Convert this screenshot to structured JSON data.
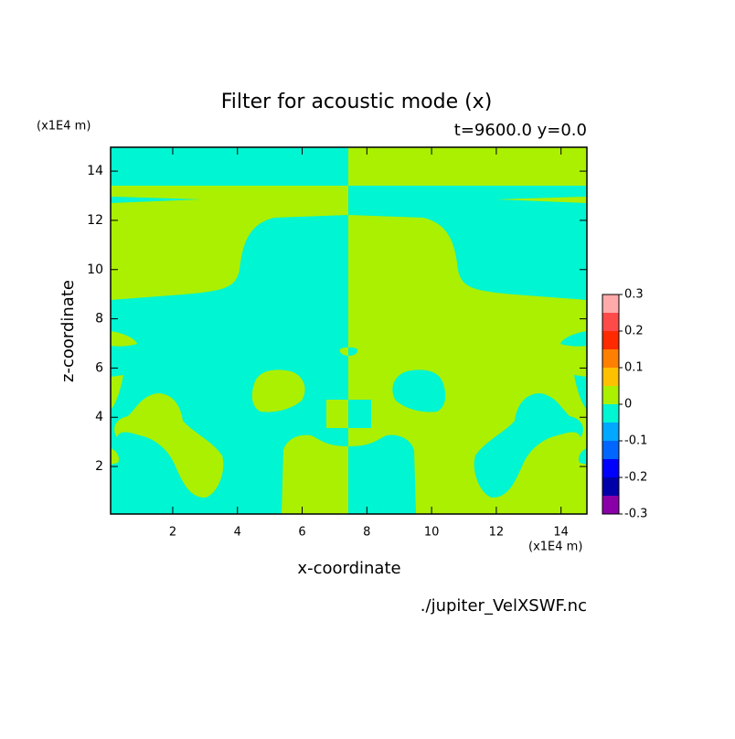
{
  "chart_data": {
    "type": "filled-contour",
    "title": "Filter for acoustic mode (x)",
    "subtitle": "t=9600.0 y=0.0",
    "xlabel": "x-coordinate",
    "ylabel": "z-coordinate",
    "x_unit": "(x1E4 m)",
    "y_unit": "(x1E4 m)",
    "source": "./jupiter_VelXSWF.nc",
    "xlim": [
      0.08,
      14.8
    ],
    "ylim": [
      0.07,
      14.97
    ],
    "xticks": [
      2,
      4,
      6,
      8,
      10,
      12,
      14
    ],
    "yticks": [
      2,
      4,
      6,
      8,
      10,
      12,
      14
    ],
    "levels": [
      -0.3,
      -0.25,
      -0.2,
      -0.15,
      -0.1,
      -0.05,
      0,
      0.05,
      0.1,
      0.15,
      0.2,
      0.25,
      0.3
    ],
    "colors": [
      "#8a00a8",
      "#0000a8",
      "#0000ff",
      "#0066ff",
      "#00a8ff",
      "#00f5d2",
      "#aaf000",
      "#ffc000",
      "#ff8000",
      "#ff2a00",
      "#ff4a4a",
      "#ffaaaa"
    ],
    "colorbar_ticks": [
      -0.3,
      -0.2,
      -0.1,
      0,
      0.1,
      0.2,
      0.3
    ]
  }
}
